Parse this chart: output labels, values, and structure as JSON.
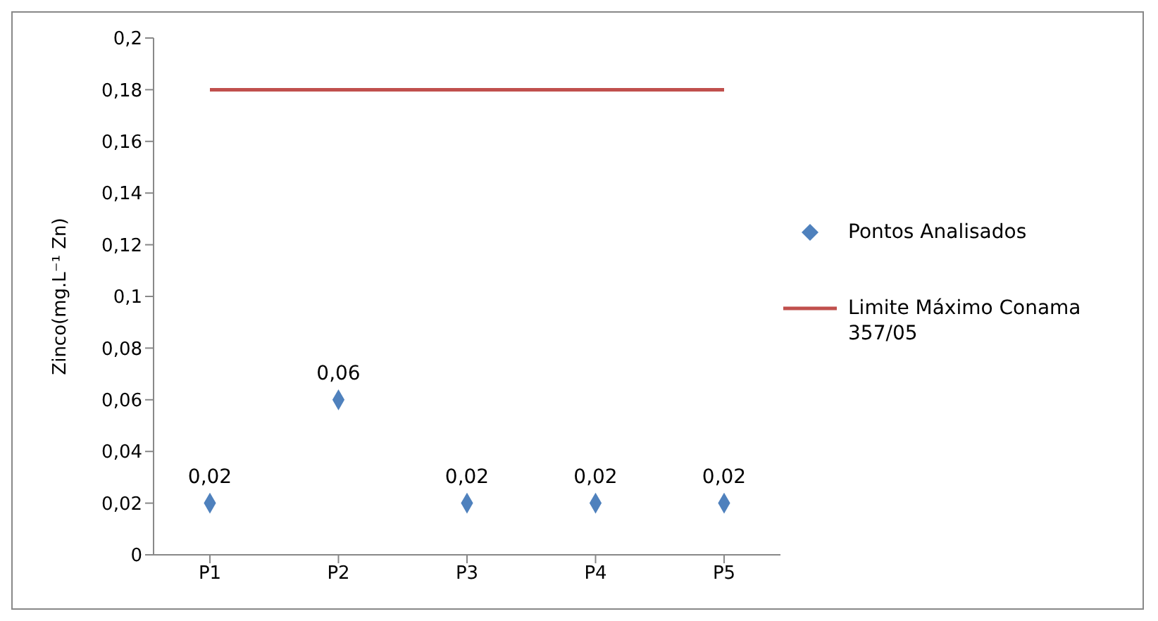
{
  "chart_data": {
    "type": "scatter",
    "ylabel": "Zinco(mg.L⁻¹ Zn)",
    "categories": [
      "P1",
      "P2",
      "P3",
      "P4",
      "P5"
    ],
    "series": [
      {
        "name": "Pontos Analisados",
        "color": "#4f81bd",
        "values": [
          0.02,
          0.06,
          0.02,
          0.02,
          0.02
        ],
        "value_labels": [
          "0,02",
          "0,06",
          "0,02",
          "0,02",
          "0,02"
        ],
        "marker": "diamond"
      },
      {
        "name": "Limite Máximo Conama 357/05",
        "type": "line",
        "color": "#c0504d",
        "values": [
          0.18,
          0.18,
          0.18,
          0.18,
          0.18
        ],
        "marker": "none"
      }
    ],
    "ylim": [
      0,
      0.2
    ],
    "yticks": [
      {
        "value": 0,
        "label": "0"
      },
      {
        "value": 0.02,
        "label": "0,02"
      },
      {
        "value": 0.04,
        "label": "0,04"
      },
      {
        "value": 0.06,
        "label": "0,06"
      },
      {
        "value": 0.08,
        "label": "0,08"
      },
      {
        "value": 0.1,
        "label": "0,1"
      },
      {
        "value": 0.12,
        "label": "0,12"
      },
      {
        "value": 0.14,
        "label": "0,14"
      },
      {
        "value": 0.16,
        "label": "0,16"
      },
      {
        "value": 0.18,
        "label": "0,18"
      },
      {
        "value": 0.2,
        "label": "0,2"
      }
    ],
    "grid": false,
    "legend": "right"
  }
}
